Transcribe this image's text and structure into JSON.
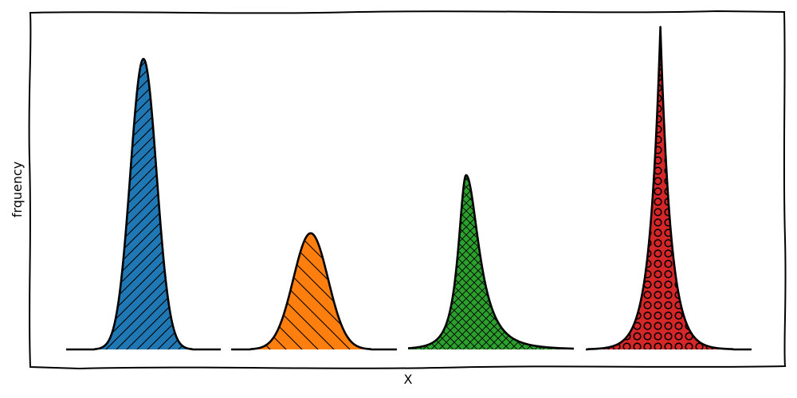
{
  "chart_data": {
    "type": "area",
    "title": "",
    "xlabel": "X",
    "ylabel": "frquency",
    "grid": false,
    "legend": "none",
    "x_ticks": [],
    "y_ticks": [],
    "ylim": [
      0,
      1.08
    ],
    "series": [
      {
        "shape": "gaussian",
        "x_range": [
          0.0,
          1.0
        ],
        "peak_x": 0.5,
        "peak_y": 1.0,
        "width": 0.085,
        "color": "#1f77b4",
        "hatch": "diagonal-forward"
      },
      {
        "shape": "gaussian",
        "x_range": [
          1.0,
          2.0
        ],
        "peak_x": 1.48,
        "peak_y": 0.4,
        "width": 0.105,
        "color": "#ff7f0e",
        "hatch": "diagonal-back"
      },
      {
        "shape": "skewed-peak",
        "x_range": [
          2.0,
          3.0
        ],
        "peak_x": 2.35,
        "peak_y": 0.6,
        "width": 0.09,
        "color": "#2ca02c",
        "hatch": "crosshatch"
      },
      {
        "shape": "cusp-peak",
        "x_range": [
          3.0,
          4.0
        ],
        "peak_x": 3.45,
        "peak_y": 1.11,
        "width": 0.05,
        "color": "#d62728",
        "hatch": "circles"
      }
    ]
  }
}
